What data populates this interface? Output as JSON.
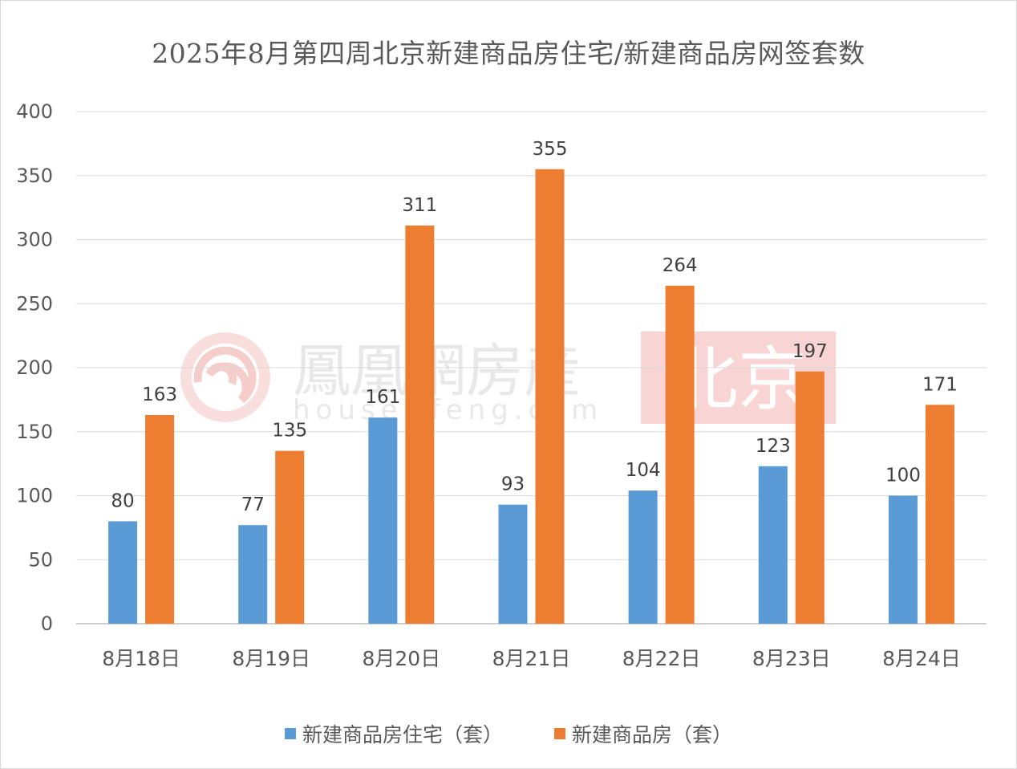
{
  "watermark": {
    "brand_cn": "鳳凰網房産",
    "brand_en": "house.ifeng.com",
    "city": "北京"
  },
  "chart_data": {
    "type": "bar",
    "title": "2025年8月第四周北京新建商品房住宅/新建商品房网签套数",
    "xlabel": "",
    "ylabel": "",
    "categories": [
      "8月18日",
      "8月19日",
      "8月20日",
      "8月21日",
      "8月22日",
      "8月23日",
      "8月24日"
    ],
    "series": [
      {
        "name": "新建商品房住宅（套）",
        "values": [
          80,
          77,
          161,
          93,
          104,
          123,
          100
        ],
        "color": "#5b9bd5"
      },
      {
        "name": "新建商品房（套）",
        "values": [
          163,
          135,
          311,
          355,
          264,
          197,
          171
        ],
        "color": "#ed7d31"
      }
    ],
    "ylim": [
      0,
      400
    ],
    "yticks": [
      0,
      50,
      100,
      150,
      200,
      250,
      300,
      350,
      400
    ],
    "grid": true,
    "data_labels": true,
    "legend_position": "bottom"
  }
}
